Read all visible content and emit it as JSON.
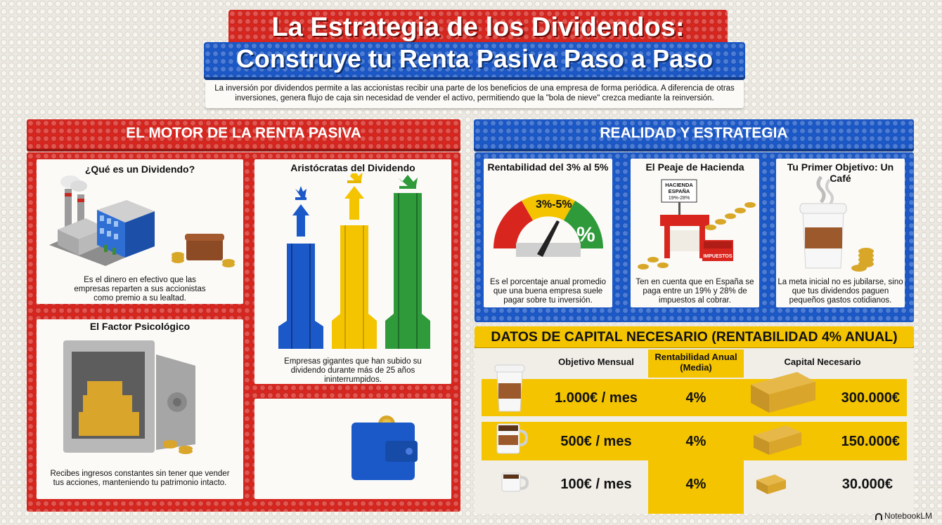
{
  "header": {
    "title_line1": "La Estrategia de los Dividendos:",
    "title_line2": "Construye tu Renta Pasiva Paso a Paso",
    "intro": "La inversión por dividendos permite a las accionistas recibir una parte de los beneficios de una empresa de forma periódica. A diferencia de otras inversiones, genera flujo de caja sin necesidad de vender el activo, permitiendo que la \"bola de nieve\" crezca mediante la reinversión."
  },
  "left_section": {
    "heading": "EL MOTOR DE LA RENTA PASIVA",
    "cards": [
      {
        "title": "¿Qué es un Dividendo?",
        "text": "Es el dinero en efectivo que las empresas reparten a sus accionistas como premio a su lealtad."
      },
      {
        "title": "Aristócratas del Dividendo",
        "text": "Empresas gigantes que han subido su dividendo durante más de 25 años ininterrumpidos."
      },
      {
        "title": "El Factor Psicológico",
        "text": "Recibes ingresos constantes sin tener que vender tus acciones, manteniendo tu patrimonio intacto."
      }
    ]
  },
  "right_section": {
    "heading": "REALIDAD Y ESTRATEGIA",
    "cards": [
      {
        "title": "Rentabilidad del 3% al 5%",
        "text": "Es el porcentaje anual promedio que una buena empresa suele pagar sobre tu inversión.",
        "gauge_label": "3%-5%",
        "gauge_symbol": "%"
      },
      {
        "title": "El Peaje de Hacienda",
        "text": "Ten en cuenta que en España se paga entre un 19% y 28% de impuestos al cobrar.",
        "sign": [
          "HACIENDA",
          "ESPAÑA",
          "19%-28%"
        ],
        "box_label": "IMPUESTOS"
      },
      {
        "title": "Tu Primer Objetivo: Un Café",
        "text": "La meta inicial no es jubilarse, sino que tus dividendos paguen pequeños gastos cotidianos."
      }
    ]
  },
  "capital_table": {
    "heading": "DATOS DE CAPITAL NECESARIO (RENTABILIDAD 4% ANUAL)",
    "columns": [
      "Objetivo Mensual",
      "Rentabilidad Anual (Media)",
      "Capital Necesario"
    ],
    "rows": [
      {
        "monthly": "1.000€ / mes",
        "rate": "4%",
        "capital": "300.000€"
      },
      {
        "monthly": "500€ / mes",
        "rate": "4%",
        "capital": "150.000€"
      },
      {
        "monthly": "100€ / mes",
        "rate": "4%",
        "capital": "30.000€"
      }
    ]
  },
  "footer": {
    "brand": "NotebookLM"
  },
  "colors": {
    "red": "#d8261f",
    "blue": "#1b59c9",
    "yellow": "#f4c400",
    "green": "#2e9a3a"
  }
}
